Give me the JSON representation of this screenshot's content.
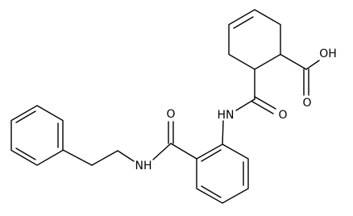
{
  "atoms": [
    {
      "label": "OH"
    },
    {
      "label": "O"
    },
    {
      "label": "O"
    },
    {
      "label": "HN"
    },
    {
      "label": "O"
    },
    {
      "label": "NH"
    }
  ]
}
